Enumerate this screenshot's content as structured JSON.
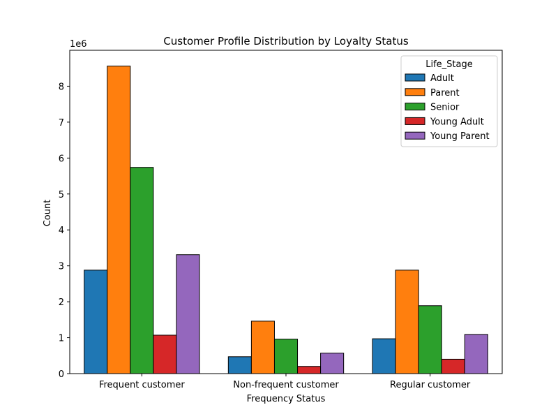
{
  "chart_data": {
    "type": "bar",
    "title": "Customer Profile Distribution by Loyalty Status",
    "xlabel": "Frequency Status",
    "ylabel": "Count",
    "y_offset_label": "1e6",
    "categories": [
      "Frequent customer",
      "Non-frequent customer",
      "Regular customer"
    ],
    "yticks": [
      0,
      1,
      2,
      3,
      4,
      5,
      6,
      7,
      8
    ],
    "ylim": [
      0,
      9.0
    ],
    "legend": {
      "title": "Life_Stage",
      "placement": "upper right"
    },
    "grid": false,
    "series": [
      {
        "name": "Adult",
        "color": "#1f77b4",
        "values": [
          2.88,
          0.47,
          0.97
        ]
      },
      {
        "name": "Parent",
        "color": "#ff7f0e",
        "values": [
          8.56,
          1.46,
          2.88
        ]
      },
      {
        "name": "Senior",
        "color": "#2ca02c",
        "values": [
          5.74,
          0.96,
          1.89
        ]
      },
      {
        "name": "Young Adult",
        "color": "#d62728",
        "values": [
          1.07,
          0.2,
          0.4
        ]
      },
      {
        "name": "Young Parent",
        "color": "#9467bd",
        "values": [
          3.31,
          0.57,
          1.09
        ]
      }
    ]
  }
}
